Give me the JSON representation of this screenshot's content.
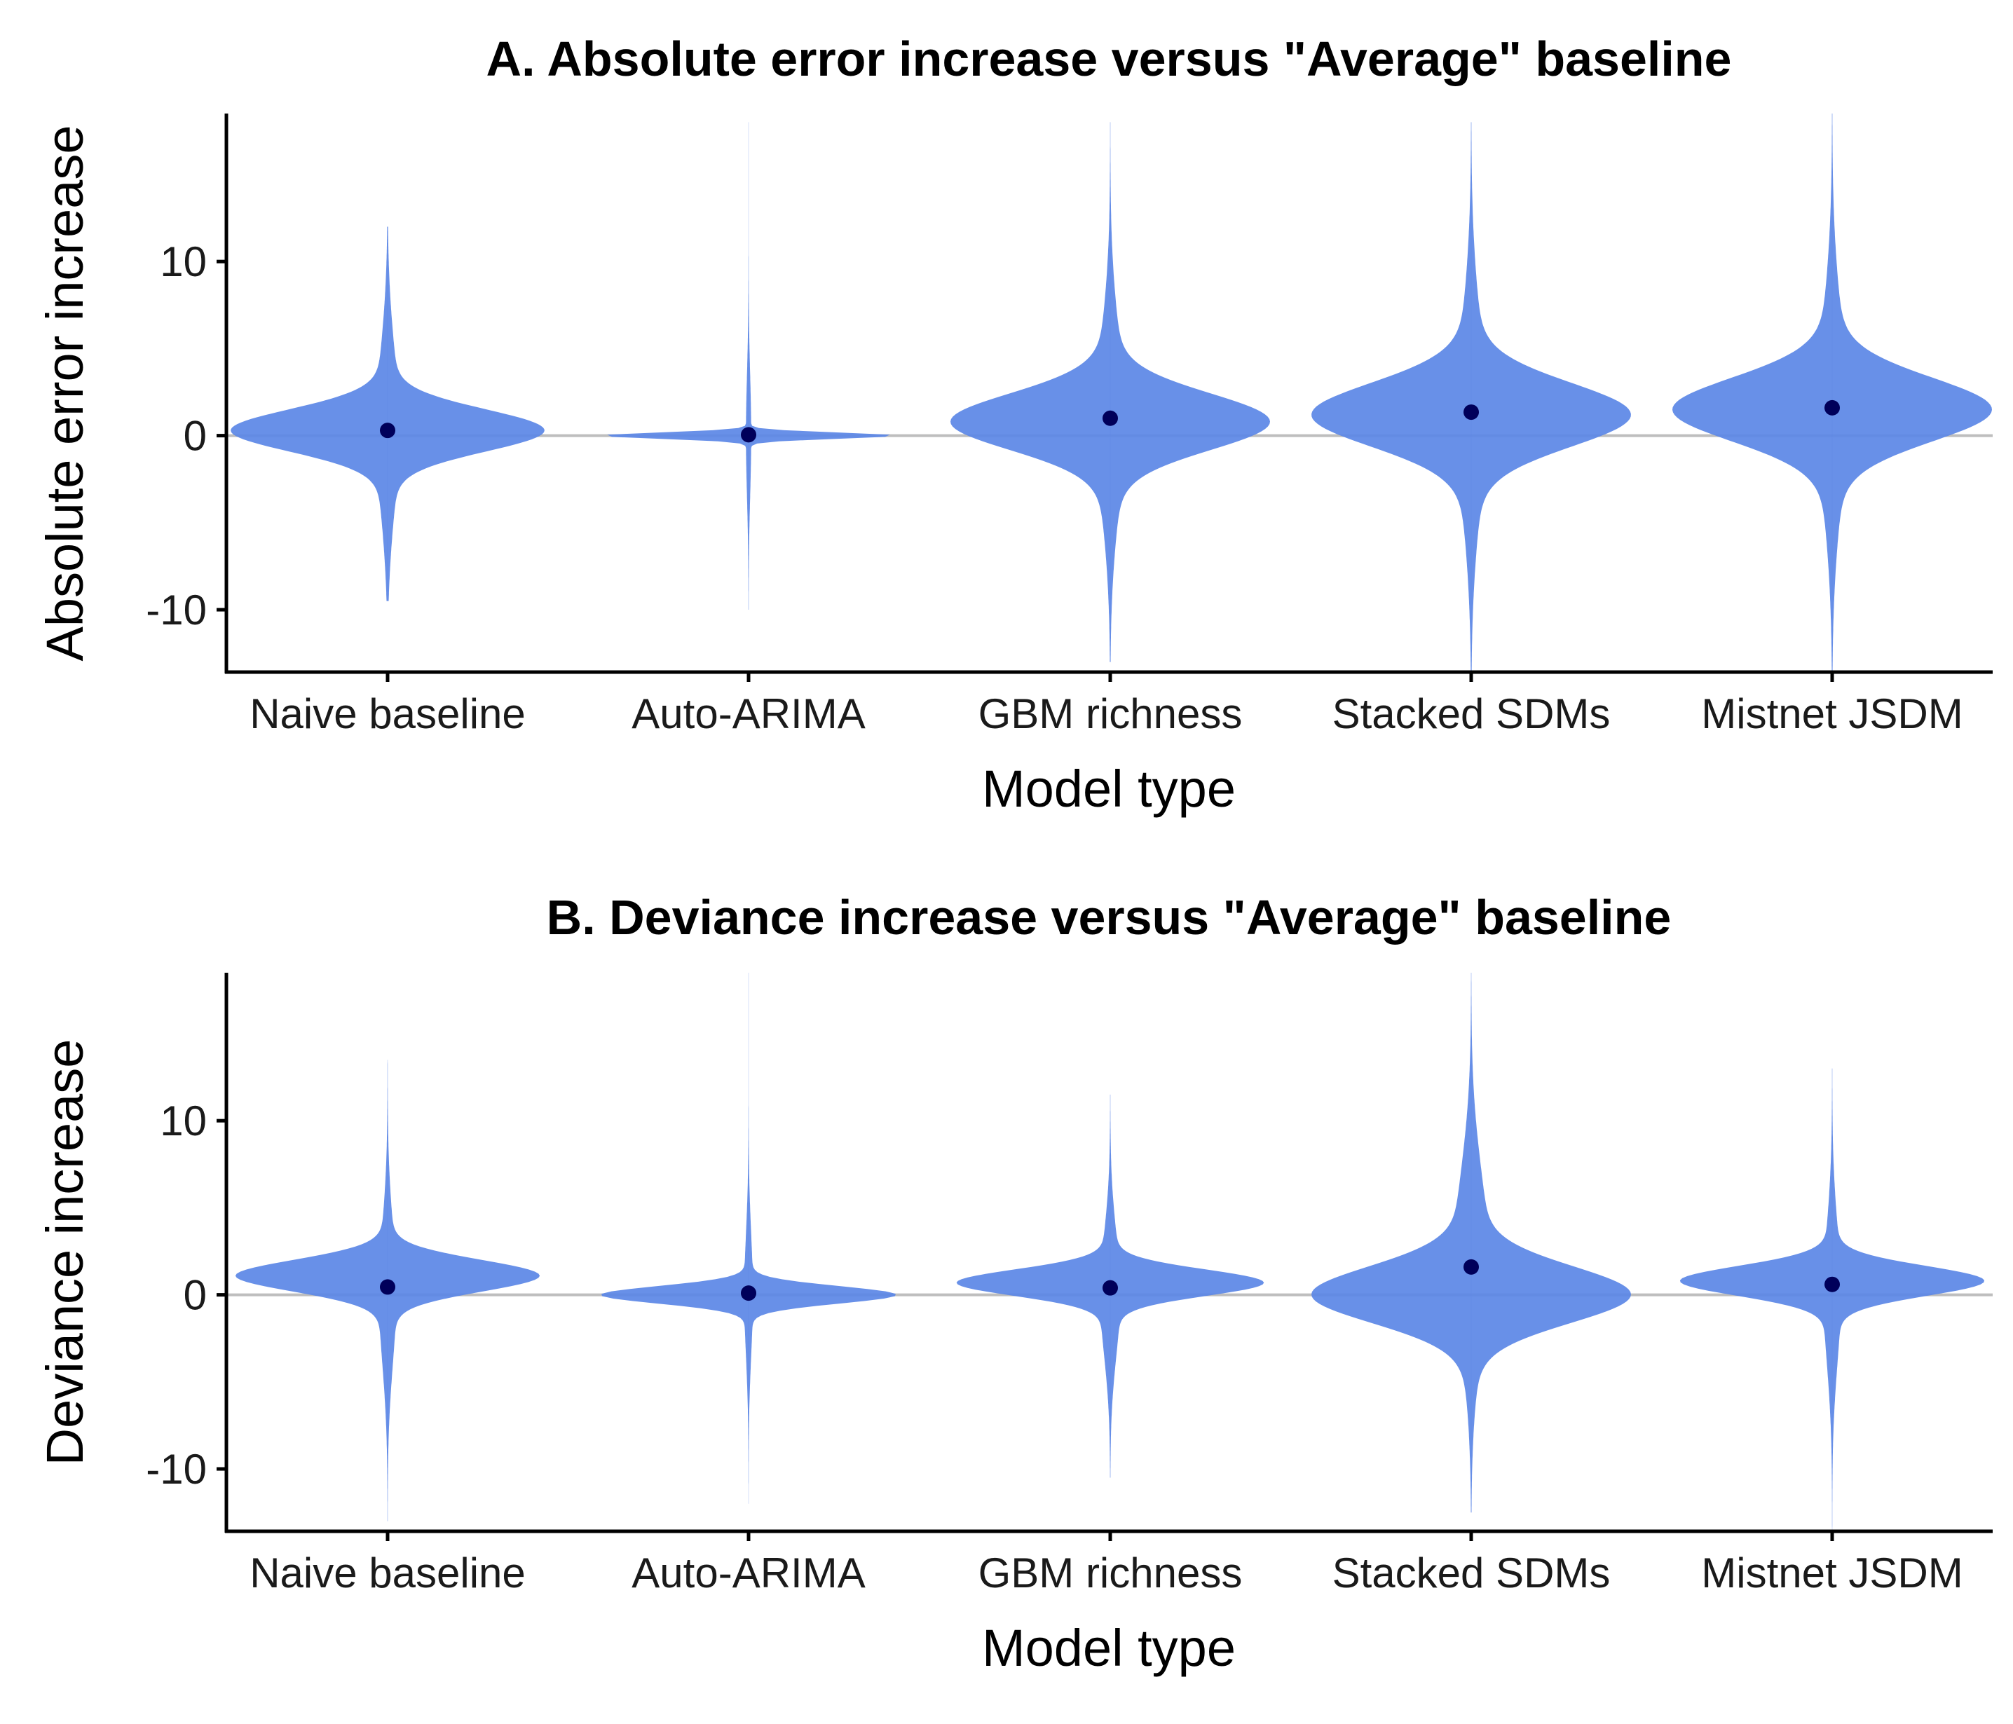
{
  "colors": {
    "violin": "#5b87e6",
    "point": "#00005a",
    "zero_line": "#bebebe",
    "axis": "#000000"
  },
  "chart_data": [
    {
      "type": "violin",
      "title": "A. Absolute error increase versus \"Average\" baseline",
      "xlabel": "Model type",
      "ylabel": "Absolute error increase",
      "categories": [
        "Naive baseline",
        "Auto-ARIMA",
        "GBM richness",
        "Stacked SDMs",
        "Mistnet JSDM"
      ],
      "yticks": [
        -10,
        0,
        10
      ],
      "ylim": [
        -13.5,
        18.5
      ],
      "zero_line": 0,
      "grid": false,
      "means": [
        0.3,
        0.05,
        1.0,
        1.35,
        1.6
      ],
      "distributions": [
        {
          "range": [
            -9.5,
            12
          ],
          "modes": [
            {
              "center": 0.3,
              "sd": 1.2,
              "weight": 1
            },
            {
              "center": 0.3,
              "sd": 4.5,
              "weight": 0.08
            }
          ]
        },
        {
          "range": [
            -10,
            18
          ],
          "modes": [
            {
              "center": 0,
              "sd": 0.18,
              "weight": 1
            },
            {
              "center": 0,
              "sd": 3.5,
              "weight": 0.018
            }
          ]
        },
        {
          "range": [
            -13,
            18
          ],
          "modes": [
            {
              "center": 0.8,
              "sd": 1.6,
              "weight": 1
            },
            {
              "center": 0.8,
              "sd": 5,
              "weight": 0.1
            }
          ]
        },
        {
          "range": [
            -13.5,
            18
          ],
          "modes": [
            {
              "center": 1.2,
              "sd": 1.8,
              "weight": 1
            },
            {
              "center": 1.2,
              "sd": 5.5,
              "weight": 0.1
            }
          ]
        },
        {
          "range": [
            -13.5,
            18.5
          ],
          "modes": [
            {
              "center": 1.5,
              "sd": 1.8,
              "weight": 1
            },
            {
              "center": 1.5,
              "sd": 5.5,
              "weight": 0.1
            }
          ]
        }
      ]
    },
    {
      "type": "violin",
      "title": "B. Deviance increase versus \"Average\" baseline",
      "xlabel": "Model type",
      "ylabel": "Deviance increase",
      "categories": [
        "Naive baseline",
        "Auto-ARIMA",
        "GBM richness",
        "Stacked SDMs",
        "Mistnet JSDM"
      ],
      "yticks": [
        -10,
        0,
        10
      ],
      "ylim": [
        -13.5,
        18.5
      ],
      "zero_line": 0,
      "grid": false,
      "means": [
        0.45,
        0.1,
        0.4,
        1.6,
        0.6
      ],
      "distributions": [
        {
          "range": [
            -13,
            13.5
          ],
          "modes": [
            {
              "center": 1.1,
              "sd": 0.9,
              "weight": 1
            },
            {
              "center": 0,
              "sd": 4,
              "weight": 0.06
            }
          ]
        },
        {
          "range": [
            -12,
            18.5
          ],
          "modes": [
            {
              "center": 0,
              "sd": 0.5,
              "weight": 1
            },
            {
              "center": 0,
              "sd": 3.5,
              "weight": 0.03
            }
          ]
        },
        {
          "range": [
            -10.5,
            11.5
          ],
          "modes": [
            {
              "center": 0.7,
              "sd": 0.75,
              "weight": 1
            },
            {
              "center": 0,
              "sd": 3.5,
              "weight": 0.07
            }
          ]
        },
        {
          "range": [
            -12.5,
            18.5
          ],
          "modes": [
            {
              "center": 0,
              "sd": 1.6,
              "weight": 1
            },
            {
              "center": 2,
              "sd": 5,
              "weight": 0.12
            }
          ]
        },
        {
          "range": [
            -13.5,
            13
          ],
          "modes": [
            {
              "center": 0.8,
              "sd": 0.85,
              "weight": 1
            },
            {
              "center": 0,
              "sd": 4,
              "weight": 0.06
            }
          ]
        }
      ]
    }
  ]
}
